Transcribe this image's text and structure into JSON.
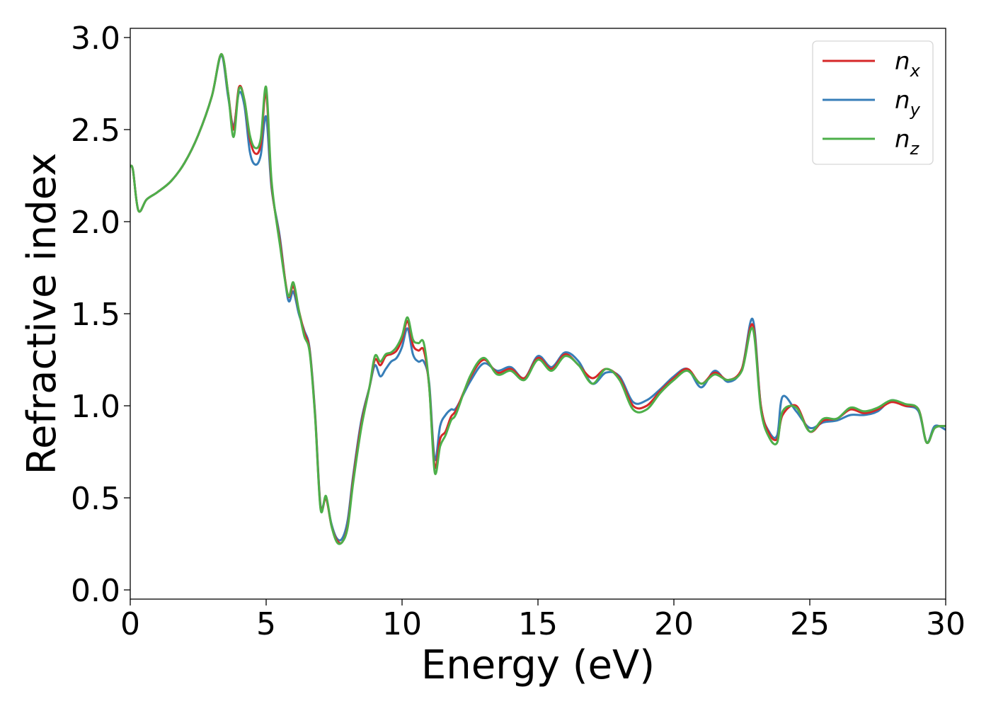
{
  "chart_data": {
    "type": "line",
    "title": "",
    "xlabel": "Energy (eV)",
    "ylabel": "Refractive index",
    "xlim": [
      0,
      30
    ],
    "ylim": [
      -0.05,
      3.05
    ],
    "xticks": [
      0,
      5,
      10,
      15,
      20,
      25,
      30
    ],
    "xtick_labels": [
      "0",
      "5",
      "10",
      "15",
      "20",
      "25",
      "30"
    ],
    "yticks": [
      0.0,
      0.5,
      1.0,
      1.5,
      2.0,
      2.5,
      3.0
    ],
    "ytick_labels": [
      "0.0",
      "0.5",
      "1.0",
      "1.5",
      "2.0",
      "2.5",
      "3.0"
    ],
    "grid": false,
    "legend_position": "top-right",
    "series": [
      {
        "name": "n_x",
        "legend_base": "n",
        "legend_sub": "x",
        "color": "#d62728",
        "x": [
          0,
          0.1,
          0.3,
          0.6,
          1.0,
          1.5,
          2.0,
          2.5,
          3.0,
          3.35,
          3.6,
          3.8,
          4.0,
          4.2,
          4.4,
          4.6,
          4.8,
          5.0,
          5.2,
          5.5,
          5.8,
          6.0,
          6.2,
          6.4,
          6.6,
          6.8,
          7.0,
          7.2,
          7.4,
          7.6,
          7.8,
          8.0,
          8.2,
          8.5,
          8.8,
          9.0,
          9.2,
          9.4,
          9.6,
          9.8,
          10.0,
          10.2,
          10.4,
          10.6,
          10.8,
          11.0,
          11.2,
          11.4,
          11.6,
          11.8,
          12.0,
          12.5,
          13.0,
          13.5,
          14.0,
          14.5,
          15.0,
          15.5,
          16.0,
          16.5,
          17.0,
          17.5,
          18.0,
          18.5,
          19.0,
          19.5,
          20.0,
          20.5,
          21.0,
          21.5,
          22.0,
          22.5,
          22.9,
          23.2,
          23.5,
          23.8,
          24.0,
          24.5,
          25.0,
          25.5,
          26.0,
          26.5,
          27.0,
          27.5,
          28.0,
          28.5,
          29.0,
          29.3,
          29.6,
          30.0
        ],
        "values": [
          2.3,
          2.28,
          2.06,
          2.12,
          2.16,
          2.22,
          2.32,
          2.47,
          2.68,
          2.91,
          2.7,
          2.5,
          2.73,
          2.66,
          2.45,
          2.37,
          2.42,
          2.7,
          2.2,
          1.9,
          1.6,
          1.65,
          1.52,
          1.4,
          1.3,
          0.95,
          0.45,
          0.5,
          0.35,
          0.27,
          0.26,
          0.35,
          0.6,
          0.9,
          1.1,
          1.25,
          1.22,
          1.27,
          1.28,
          1.3,
          1.36,
          1.46,
          1.33,
          1.3,
          1.3,
          1.1,
          0.67,
          0.82,
          0.86,
          0.94,
          0.98,
          1.15,
          1.25,
          1.18,
          1.2,
          1.15,
          1.26,
          1.2,
          1.28,
          1.22,
          1.15,
          1.2,
          1.15,
          1.0,
          1.0,
          1.08,
          1.15,
          1.2,
          1.12,
          1.18,
          1.14,
          1.2,
          1.44,
          1.0,
          0.85,
          0.82,
          0.95,
          1.0,
          0.86,
          0.92,
          0.93,
          0.98,
          0.96,
          0.98,
          1.02,
          1.0,
          0.98,
          0.8,
          0.88,
          0.89
        ]
      },
      {
        "name": "n_y",
        "legend_base": "n",
        "legend_sub": "y",
        "color": "#377eb8",
        "x": [
          0,
          0.1,
          0.3,
          0.6,
          1.0,
          1.5,
          2.0,
          2.5,
          3.0,
          3.35,
          3.6,
          3.8,
          4.0,
          4.2,
          4.4,
          4.6,
          4.8,
          5.0,
          5.2,
          5.5,
          5.8,
          6.0,
          6.2,
          6.4,
          6.6,
          6.8,
          7.0,
          7.2,
          7.4,
          7.6,
          7.8,
          8.0,
          8.2,
          8.5,
          8.8,
          9.0,
          9.2,
          9.4,
          9.6,
          9.8,
          10.0,
          10.2,
          10.4,
          10.6,
          10.8,
          11.0,
          11.2,
          11.4,
          11.6,
          11.8,
          12.0,
          12.5,
          13.0,
          13.5,
          14.0,
          14.5,
          15.0,
          15.5,
          16.0,
          16.5,
          17.0,
          17.5,
          18.0,
          18.5,
          19.0,
          19.5,
          20.0,
          20.5,
          21.0,
          21.5,
          22.0,
          22.5,
          22.9,
          23.2,
          23.5,
          23.8,
          24.0,
          24.5,
          25.0,
          25.5,
          26.0,
          26.5,
          27.0,
          27.5,
          28.0,
          28.5,
          29.0,
          29.3,
          29.6,
          30.0
        ],
        "values": [
          2.3,
          2.28,
          2.06,
          2.12,
          2.16,
          2.22,
          2.32,
          2.47,
          2.68,
          2.9,
          2.68,
          2.52,
          2.7,
          2.63,
          2.38,
          2.31,
          2.36,
          2.57,
          2.18,
          1.92,
          1.58,
          1.62,
          1.5,
          1.41,
          1.31,
          0.96,
          0.46,
          0.5,
          0.36,
          0.28,
          0.28,
          0.38,
          0.62,
          0.92,
          1.1,
          1.22,
          1.16,
          1.2,
          1.24,
          1.26,
          1.32,
          1.42,
          1.28,
          1.24,
          1.24,
          1.12,
          0.71,
          0.89,
          0.95,
          0.98,
          0.99,
          1.13,
          1.23,
          1.19,
          1.21,
          1.15,
          1.27,
          1.21,
          1.29,
          1.24,
          1.12,
          1.18,
          1.16,
          1.02,
          1.03,
          1.09,
          1.16,
          1.2,
          1.1,
          1.19,
          1.13,
          1.2,
          1.47,
          1.0,
          0.86,
          0.84,
          1.05,
          0.97,
          0.88,
          0.91,
          0.92,
          0.95,
          0.95,
          0.97,
          1.03,
          1.0,
          0.97,
          0.8,
          0.89,
          0.87
        ]
      },
      {
        "name": "n_z",
        "legend_base": "n",
        "legend_sub": "z",
        "color": "#4daf4a",
        "x": [
          0,
          0.1,
          0.3,
          0.6,
          1.0,
          1.5,
          2.0,
          2.5,
          3.0,
          3.35,
          3.6,
          3.8,
          4.0,
          4.2,
          4.4,
          4.6,
          4.8,
          5.0,
          5.2,
          5.5,
          5.8,
          6.0,
          6.2,
          6.4,
          6.6,
          6.8,
          7.0,
          7.2,
          7.4,
          7.6,
          7.8,
          8.0,
          8.2,
          8.5,
          8.8,
          9.0,
          9.2,
          9.4,
          9.6,
          9.8,
          10.0,
          10.2,
          10.4,
          10.6,
          10.8,
          11.0,
          11.2,
          11.4,
          11.6,
          11.8,
          12.0,
          12.5,
          13.0,
          13.5,
          14.0,
          14.5,
          15.0,
          15.5,
          16.0,
          16.5,
          17.0,
          17.5,
          18.0,
          18.5,
          19.0,
          19.5,
          20.0,
          20.5,
          21.0,
          21.5,
          22.0,
          22.5,
          22.9,
          23.2,
          23.5,
          23.8,
          24.0,
          24.5,
          25.0,
          25.5,
          26.0,
          26.5,
          27.0,
          27.5,
          28.0,
          28.5,
          29.0,
          29.3,
          29.6,
          30.0
        ],
        "values": [
          2.3,
          2.28,
          2.06,
          2.12,
          2.16,
          2.22,
          2.32,
          2.47,
          2.68,
          2.91,
          2.7,
          2.46,
          2.72,
          2.66,
          2.47,
          2.4,
          2.45,
          2.73,
          2.22,
          1.88,
          1.6,
          1.67,
          1.52,
          1.38,
          1.29,
          0.94,
          0.44,
          0.51,
          0.35,
          0.26,
          0.26,
          0.34,
          0.58,
          0.88,
          1.1,
          1.27,
          1.24,
          1.28,
          1.29,
          1.32,
          1.38,
          1.48,
          1.36,
          1.34,
          1.34,
          1.1,
          0.64,
          0.78,
          0.84,
          0.92,
          0.96,
          1.16,
          1.26,
          1.17,
          1.19,
          1.14,
          1.25,
          1.19,
          1.27,
          1.22,
          1.12,
          1.2,
          1.14,
          0.98,
          0.98,
          1.07,
          1.14,
          1.19,
          1.12,
          1.17,
          1.14,
          1.19,
          1.42,
          0.98,
          0.83,
          0.8,
          0.97,
          0.99,
          0.86,
          0.93,
          0.93,
          0.99,
          0.97,
          0.99,
          1.03,
          1.01,
          0.98,
          0.8,
          0.88,
          0.89
        ]
      }
    ]
  }
}
